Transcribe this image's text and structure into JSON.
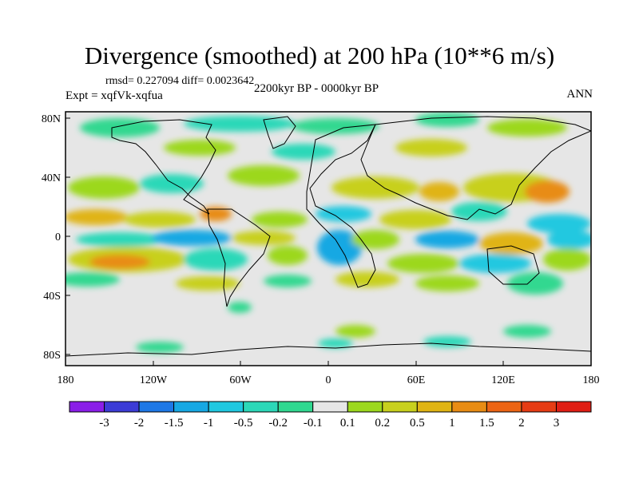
{
  "title": "Divergence (smoothed) at 200 hPa (10**6 m/s)",
  "stats": "rmsd= 0.227094 diff= 0.0023642",
  "experiment": "Expt = xqfVk-xqfua",
  "period": "2200kyr BP - 0000kyr BP",
  "season": "ANN",
  "lat_ticks": [
    "80N",
    "40N",
    "0",
    "40S",
    "80S"
  ],
  "lon_ticks": [
    "180",
    "120W",
    "60W",
    "0",
    "60E",
    "120E",
    "180"
  ],
  "colorbar": {
    "labels": [
      "-3",
      "-2",
      "-1.5",
      "-1",
      "-0.5",
      "-0.2",
      "-0.1",
      "0.1",
      "0.2",
      "0.5",
      "1",
      "1.5",
      "2",
      "3"
    ],
    "colors": [
      "#8a1ee8",
      "#3c3cd6",
      "#1e78e6",
      "#17a8e3",
      "#20c8e0",
      "#2cd8b8",
      "#30d890",
      "#e6e6e6",
      "#9cd81e",
      "#c8d01e",
      "#e0b414",
      "#e88c14",
      "#ec6414",
      "#e63c14",
      "#e01e14"
    ]
  }
}
